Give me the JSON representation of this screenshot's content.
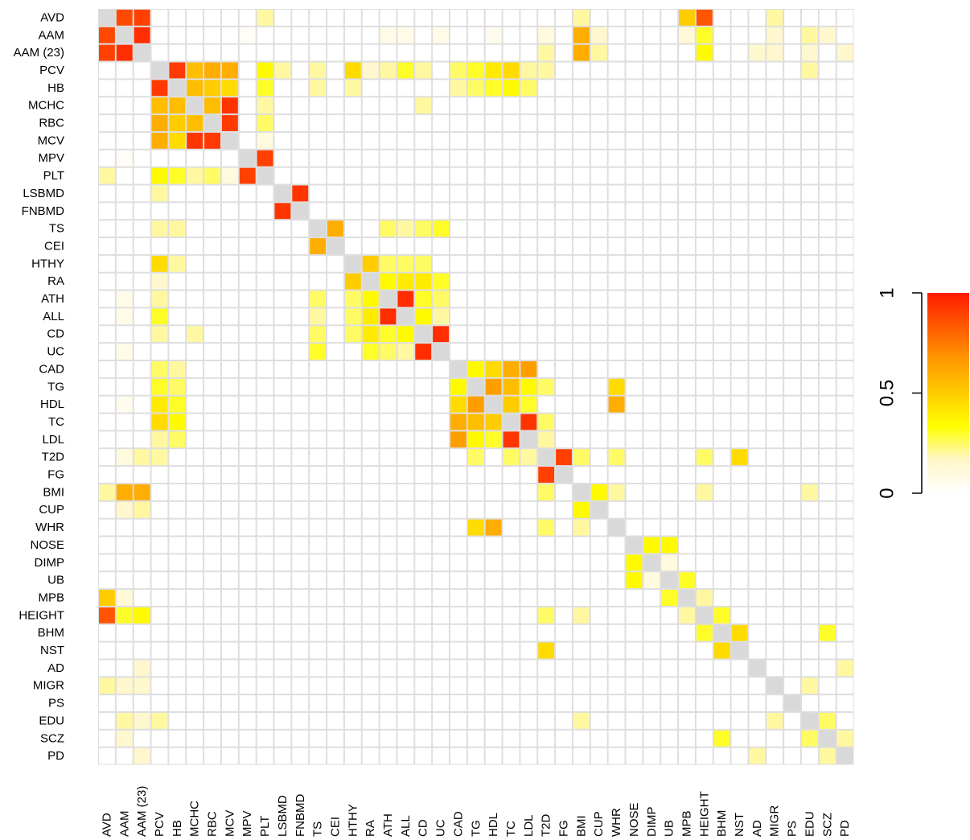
{
  "chart_data": {
    "type": "heatmap",
    "title": "",
    "xlabel": "",
    "ylabel": "",
    "labels": [
      "AVD",
      "AAM",
      "AAM (23)",
      "PCV",
      "HB",
      "MCHC",
      "RBC",
      "MCV",
      "MPV",
      "PLT",
      "LSBMD",
      "FNBMD",
      "TS",
      "CEI",
      "HTHY",
      "RA",
      "ATH",
      "ALL",
      "CD",
      "UC",
      "CAD",
      "TG",
      "HDL",
      "TC",
      "LDL",
      "T2D",
      "FG",
      "BMI",
      "CUP",
      "WHR",
      "NOSE",
      "DIMP",
      "UB",
      "MPB",
      "HEIGHT",
      "BHM",
      "NST",
      "AD",
      "MIGR",
      "PS",
      "EDU",
      "SCZ",
      "PD"
    ],
    "diagonal": "missing (grey)",
    "color_scale": {
      "min": 0,
      "max": 1,
      "ticks": [
        "0",
        "0.5",
        "1"
      ],
      "stops": [
        "#ffffff",
        "#fff6c8",
        "#ffff00",
        "#ffcc00",
        "#ff9900",
        "#ff5a00",
        "#ff1a00"
      ],
      "missing_color": "#d9d9d9",
      "grid_color": "#dedede"
    },
    "values_note": "Symmetric correlation values estimated from cell colours; pairs not listed are ~0.",
    "pairs": [
      [
        "AVD",
        "AAM",
        0.88
      ],
      [
        "AVD",
        "AAM (23)",
        0.9
      ],
      [
        "AVD",
        "PLT",
        0.2
      ],
      [
        "AVD",
        "BMI",
        0.2
      ],
      [
        "AVD",
        "MPB",
        0.5
      ],
      [
        "AVD",
        "HEIGHT",
        0.85
      ],
      [
        "AVD",
        "MIGR",
        0.2
      ],
      [
        "AAM",
        "AAM (23)",
        0.95
      ],
      [
        "AAM",
        "MPV",
        0.03
      ],
      [
        "AAM",
        "ATH",
        0.07
      ],
      [
        "AAM",
        "ALL",
        0.07
      ],
      [
        "AAM",
        "HDL",
        0.05
      ],
      [
        "AAM",
        "UC",
        0.07
      ],
      [
        "AAM",
        "T2D",
        0.1
      ],
      [
        "AAM",
        "BMI",
        0.6
      ],
      [
        "AAM",
        "CUP",
        0.15
      ],
      [
        "AAM",
        "MPB",
        0.12
      ],
      [
        "AAM",
        "HEIGHT",
        0.3
      ],
      [
        "AAM",
        "MIGR",
        0.15
      ],
      [
        "AAM",
        "EDU",
        0.2
      ],
      [
        "AAM",
        "SCZ",
        0.15
      ],
      [
        "AAM (23)",
        "BMI",
        0.6
      ],
      [
        "AAM (23)",
        "HEIGHT",
        0.35
      ],
      [
        "AAM (23)",
        "CUP",
        0.2
      ],
      [
        "AAM (23)",
        "AD",
        0.15
      ],
      [
        "AAM (23)",
        "MIGR",
        0.15
      ],
      [
        "AAM (23)",
        "T2D",
        0.2
      ],
      [
        "AAM (23)",
        "EDU",
        0.15
      ],
      [
        "AAM (23)",
        "PD",
        0.15
      ],
      [
        "PCV",
        "HB",
        0.92
      ],
      [
        "PCV",
        "MCHC",
        0.55
      ],
      [
        "PCV",
        "RBC",
        0.6
      ],
      [
        "PCV",
        "MCV",
        0.6
      ],
      [
        "PCV",
        "PLT",
        0.35
      ],
      [
        "PCV",
        "LSBMD",
        0.2
      ],
      [
        "PCV",
        "TS",
        0.2
      ],
      [
        "PCV",
        "HTHY",
        0.45
      ],
      [
        "PCV",
        "RA",
        0.15
      ],
      [
        "PCV",
        "ATH",
        0.2
      ],
      [
        "PCV",
        "ALL",
        0.3
      ],
      [
        "PCV",
        "CD",
        0.2
      ],
      [
        "PCV",
        "CAD",
        0.25
      ],
      [
        "PCV",
        "TG",
        0.3
      ],
      [
        "PCV",
        "HDL",
        0.4
      ],
      [
        "PCV",
        "TC",
        0.45
      ],
      [
        "PCV",
        "LDL",
        0.2
      ],
      [
        "PCV",
        "T2D",
        0.2
      ],
      [
        "PCV",
        "EDU",
        0.2
      ],
      [
        "HB",
        "MCHC",
        0.55
      ],
      [
        "HB",
        "RBC",
        0.5
      ],
      [
        "HB",
        "MCV",
        0.45
      ],
      [
        "HB",
        "PLT",
        0.3
      ],
      [
        "HB",
        "TS",
        0.2
      ],
      [
        "HB",
        "HTHY",
        0.2
      ],
      [
        "HB",
        "CAD",
        0.2
      ],
      [
        "HB",
        "TG",
        0.25
      ],
      [
        "HB",
        "HDL",
        0.3
      ],
      [
        "HB",
        "TC",
        0.35
      ],
      [
        "HB",
        "LDL",
        0.25
      ],
      [
        "MCHC",
        "RBC",
        0.55
      ],
      [
        "MCHC",
        "MCV",
        0.93
      ],
      [
        "MCHC",
        "PLT",
        0.2
      ],
      [
        "MCHC",
        "CD",
        0.2
      ],
      [
        "RBC",
        "MCV",
        0.92
      ],
      [
        "RBC",
        "PLT",
        0.25
      ],
      [
        "MCV",
        "PLT",
        0.1
      ],
      [
        "MPV",
        "PLT",
        0.9
      ],
      [
        "LSBMD",
        "FNBMD",
        0.93
      ],
      [
        "TS",
        "CEI",
        0.6
      ],
      [
        "TS",
        "ATH",
        0.25
      ],
      [
        "TS",
        "ALL",
        0.2
      ],
      [
        "TS",
        "CD",
        0.25
      ],
      [
        "TS",
        "UC",
        0.3
      ],
      [
        "HTHY",
        "RA",
        0.5
      ],
      [
        "HTHY",
        "ATH",
        0.25
      ],
      [
        "HTHY",
        "ALL",
        0.25
      ],
      [
        "HTHY",
        "CD",
        0.25
      ],
      [
        "RA",
        "ATH",
        0.35
      ],
      [
        "RA",
        "ALL",
        0.4
      ],
      [
        "RA",
        "CD",
        0.4
      ],
      [
        "RA",
        "UC",
        0.3
      ],
      [
        "ATH",
        "ALL",
        0.95
      ],
      [
        "ATH",
        "CD",
        0.3
      ],
      [
        "ATH",
        "UC",
        0.25
      ],
      [
        "ALL",
        "CD",
        0.35
      ],
      [
        "ALL",
        "UC",
        0.2
      ],
      [
        "CD",
        "UC",
        0.95
      ],
      [
        "CAD",
        "TG",
        0.35
      ],
      [
        "CAD",
        "HDL",
        0.45
      ],
      [
        "CAD",
        "TC",
        0.6
      ],
      [
        "CAD",
        "LDL",
        0.65
      ],
      [
        "TG",
        "HDL",
        0.65
      ],
      [
        "TG",
        "TC",
        0.55
      ],
      [
        "TG",
        "LDL",
        0.35
      ],
      [
        "TG",
        "T2D",
        0.25
      ],
      [
        "TG",
        "WHR",
        0.45
      ],
      [
        "HDL",
        "TC",
        0.5
      ],
      [
        "HDL",
        "LDL",
        0.3
      ],
      [
        "HDL",
        "WHR",
        0.6
      ],
      [
        "TC",
        "LDL",
        0.93
      ],
      [
        "TC",
        "T2D",
        0.25
      ],
      [
        "LDL",
        "T2D",
        0.2
      ],
      [
        "T2D",
        "FG",
        0.9
      ],
      [
        "T2D",
        "BMI",
        0.25
      ],
      [
        "T2D",
        "WHR",
        0.25
      ],
      [
        "T2D",
        "HEIGHT",
        0.25
      ],
      [
        "T2D",
        "NST",
        0.45
      ],
      [
        "BMI",
        "CUP",
        0.35
      ],
      [
        "BMI",
        "WHR",
        0.2
      ],
      [
        "BMI",
        "HEIGHT",
        0.2
      ],
      [
        "BMI",
        "EDU",
        0.2
      ],
      [
        "NOSE",
        "DIMP",
        0.35
      ],
      [
        "NOSE",
        "UB",
        0.35
      ],
      [
        "DIMP",
        "UB",
        0.1
      ],
      [
        "UB",
        "MPB",
        0.3
      ],
      [
        "MPB",
        "HEIGHT",
        0.2
      ],
      [
        "HEIGHT",
        "BHM",
        0.3
      ],
      [
        "BHM",
        "NST",
        0.45
      ],
      [
        "BHM",
        "SCZ",
        0.3
      ],
      [
        "AD",
        "PD",
        0.2
      ],
      [
        "MIGR",
        "EDU",
        0.2
      ],
      [
        "EDU",
        "SCZ",
        0.25
      ],
      [
        "SCZ",
        "PD",
        0.2
      ]
    ]
  }
}
